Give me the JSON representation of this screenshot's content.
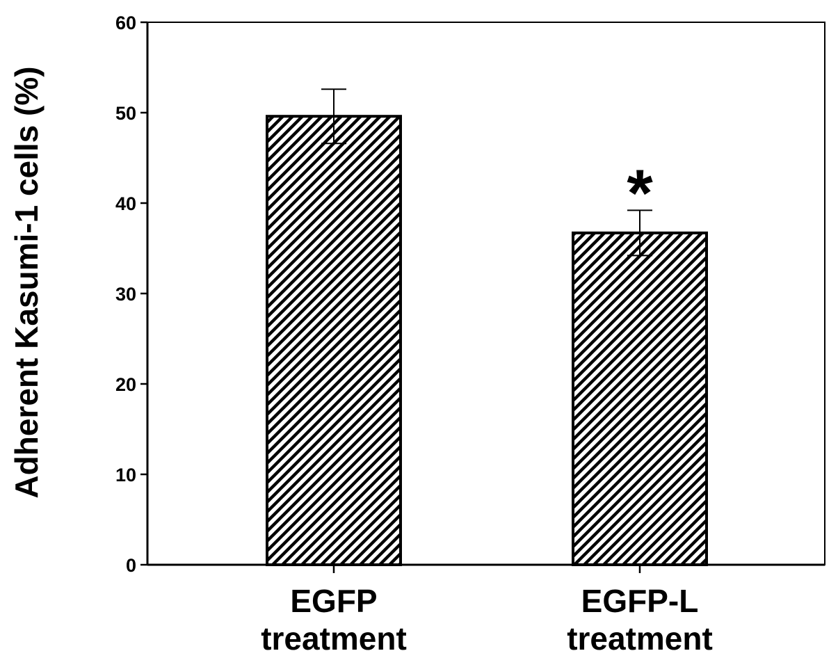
{
  "chart_data": {
    "type": "bar",
    "categories": [
      [
        "EGFP",
        "treatment"
      ],
      [
        "EGFP-L",
        "treatment"
      ]
    ],
    "values": [
      49.6,
      36.7
    ],
    "errors": [
      3.0,
      2.5
    ],
    "annotations": [
      "",
      "*"
    ],
    "title": "",
    "xlabel": "",
    "ylabel": "Adherent Kasumi-1 cells (%)",
    "ylim": [
      0,
      60
    ],
    "yticks": [
      0,
      10,
      20,
      30,
      40,
      50,
      60
    ],
    "grid": false,
    "legend": "none",
    "bar_fill": "diagonal-hatch",
    "colors": {
      "bar_edge": "#000000",
      "hatch": "#000000",
      "background": "#ffffff"
    }
  }
}
